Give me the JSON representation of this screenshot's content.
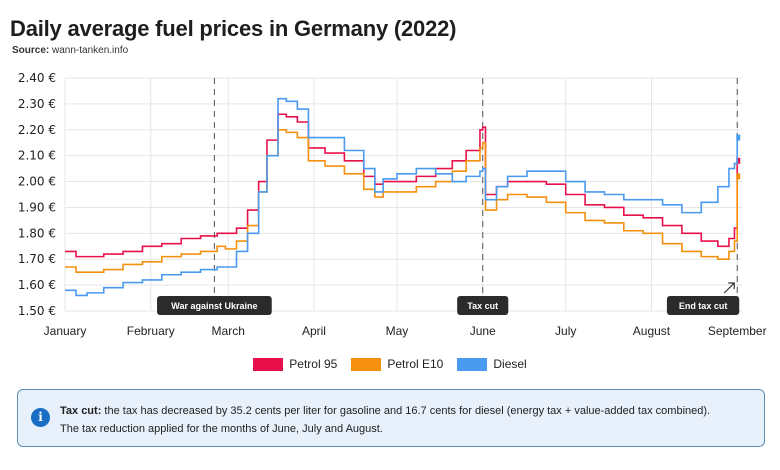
{
  "title": "Daily average fuel prices in Germany (2022)",
  "source": {
    "label": "Source:",
    "value": "wann-tanken.info"
  },
  "legend": [
    {
      "name": "Petrol 95",
      "color": "#e8104a"
    },
    {
      "name": "Petrol E10",
      "color": "#f5900f"
    },
    {
      "name": "Diesel",
      "color": "#4a9af0"
    }
  ],
  "info": {
    "icon": "info-icon",
    "bold": "Tax cut:",
    "line1": " the tax has decreased by 35.2 cents per liter for gasoline and 16.7 cents for diesel (energy tax + value-added tax combined).",
    "line2": "The tax reduction applied for the months of June, July and August."
  },
  "chart_data": {
    "type": "line",
    "title": "Daily average fuel prices in Germany (2022)",
    "xlabel": "",
    "ylabel": "",
    "ylim": [
      1.5,
      2.4
    ],
    "yticks": [
      1.5,
      1.6,
      1.7,
      1.8,
      1.9,
      2.0,
      2.1,
      2.2,
      2.3,
      2.4
    ],
    "ytick_labels": [
      "1.50 €",
      "1.60 €",
      "1.70 €",
      "1.80 €",
      "1.90 €",
      "2.00 €",
      "2.10 €",
      "2.20 €",
      "2.30 €",
      "2.40 €"
    ],
    "xticks": [
      "January",
      "February",
      "March",
      "April",
      "May",
      "June",
      "July",
      "August",
      "September"
    ],
    "xlim_days": [
      0,
      244
    ],
    "grid": true,
    "legend_position": "bottom",
    "step": true,
    "x_day": [
      0,
      4,
      8,
      14,
      21,
      28,
      35,
      42,
      49,
      55,
      58,
      62,
      66,
      70,
      73,
      77,
      80,
      84,
      88,
      94,
      101,
      108,
      112,
      115,
      120,
      127,
      134,
      140,
      145,
      150,
      151,
      152,
      156,
      160,
      167,
      174,
      181,
      188,
      195,
      202,
      209,
      216,
      223,
      230,
      236,
      240,
      242,
      243
    ],
    "series": [
      {
        "name": "Petrol 95",
        "values": [
          1.73,
          1.71,
          1.71,
          1.72,
          1.73,
          1.75,
          1.76,
          1.78,
          1.79,
          1.8,
          1.8,
          1.82,
          1.89,
          2.0,
          2.16,
          2.26,
          2.25,
          2.23,
          2.13,
          2.11,
          2.08,
          2.02,
          1.99,
          2.0,
          2.0,
          2.02,
          2.05,
          2.08,
          2.12,
          2.2,
          2.21,
          1.95,
          1.98,
          2.0,
          2.0,
          1.99,
          1.95,
          1.91,
          1.9,
          1.87,
          1.86,
          1.83,
          1.8,
          1.77,
          1.75,
          1.78,
          1.82,
          2.08
        ]
      },
      {
        "name": "Petrol E10",
        "values": [
          1.67,
          1.65,
          1.65,
          1.66,
          1.68,
          1.69,
          1.71,
          1.72,
          1.73,
          1.75,
          1.74,
          1.77,
          1.83,
          1.96,
          2.1,
          2.2,
          2.19,
          2.17,
          2.08,
          2.06,
          2.03,
          1.97,
          1.94,
          1.96,
          1.96,
          1.98,
          2.0,
          2.04,
          2.08,
          2.13,
          2.15,
          1.89,
          1.93,
          1.95,
          1.94,
          1.92,
          1.88,
          1.85,
          1.84,
          1.81,
          1.8,
          1.76,
          1.73,
          1.71,
          1.7,
          1.73,
          1.77,
          2.02
        ]
      },
      {
        "name": "Diesel",
        "values": [
          1.58,
          1.56,
          1.57,
          1.59,
          1.61,
          1.62,
          1.64,
          1.65,
          1.66,
          1.67,
          1.67,
          1.73,
          1.8,
          1.96,
          2.1,
          2.32,
          2.31,
          2.28,
          2.17,
          2.17,
          2.12,
          2.05,
          1.96,
          2.01,
          2.03,
          2.05,
          2.03,
          2.0,
          2.02,
          2.04,
          2.05,
          1.93,
          1.98,
          2.02,
          2.04,
          2.04,
          2.0,
          1.96,
          1.95,
          1.93,
          1.93,
          1.91,
          1.88,
          1.92,
          1.98,
          2.05,
          2.07,
          2.17
        ]
      }
    ],
    "annotations": [
      {
        "label": "War against Ukraine",
        "day": 54
      },
      {
        "label": "Tax cut",
        "day": 151
      },
      {
        "label": "End tax cut",
        "day": 243
      }
    ]
  }
}
